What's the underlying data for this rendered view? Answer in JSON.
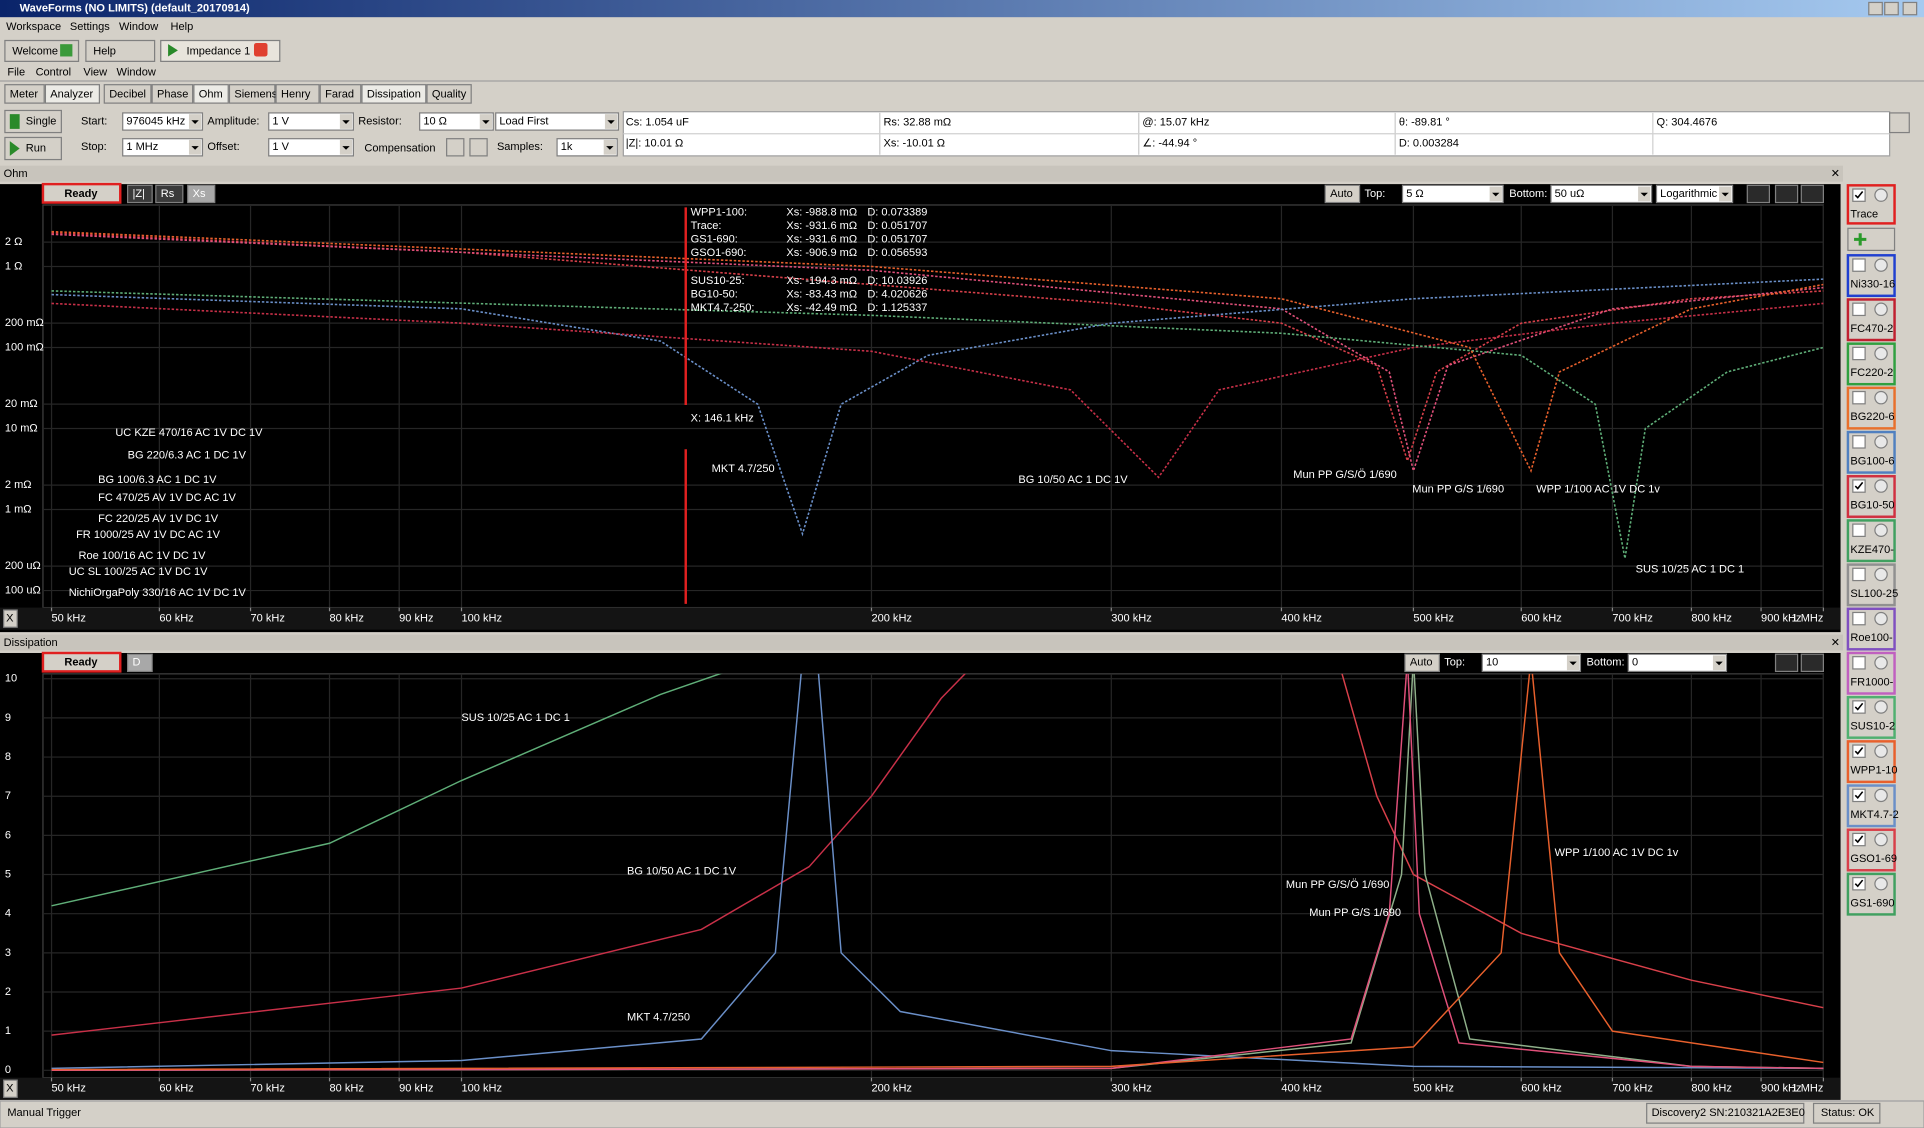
{
  "title_bar": {
    "title": "WaveForms (NO LIMITS) (default_20170914)"
  },
  "main_menu": [
    "Workspace",
    "Settings",
    "Window",
    "Help"
  ],
  "app_tabs": [
    "Welcome",
    "Help",
    "Impedance 1"
  ],
  "sub_menu": [
    "File",
    "Control",
    "View",
    "Window"
  ],
  "view_tabs": [
    "Meter",
    "Analyzer",
    "Decibel",
    "Phase",
    "Ohm",
    "Siemens",
    "Henry",
    "Farad",
    "Dissipation",
    "Quality"
  ],
  "controls": {
    "single": "Single",
    "run": "Run",
    "start_label": "Start:",
    "start": "976045 kHz",
    "stop_label": "Stop:",
    "stop": "1 MHz",
    "amplitude_label": "Amplitude:",
    "amplitude": "1 V",
    "offset_label": "Offset:",
    "offset": "1 V",
    "resistor_label": "Resistor:",
    "resistor": "10 Ω",
    "load": "Load First",
    "compensation": "Compensation",
    "samples_label": "Samples:",
    "samples": "1k"
  },
  "readouts": [
    [
      "Cs: 1.054 uF",
      "Rs: 32.88 mΩ",
      "@: 15.07 kHz",
      "θ: -89.81 °",
      "Q: 304.4676"
    ],
    [
      "|Z|: 10.01 Ω",
      "Xs: -10.01 Ω",
      "∠: -44.94 °",
      "D: 0.003284"
    ]
  ],
  "ohm_panel": {
    "panel_title": "Ohm",
    "status": "Ready",
    "buttons": [
      "|Z|",
      "Rs",
      "Xs"
    ],
    "auto": "Auto",
    "top_label": "Top:",
    "top": "5 Ω",
    "bottom_label": "Bottom:",
    "bottom": "50 uΩ",
    "scale": "Logarithmic",
    "x_button": "X",
    "chart": {
      "type": "line",
      "log_x": true,
      "log_y": true,
      "grid": true,
      "dashed": true,
      "xlim": [
        50000,
        1000000
      ],
      "xticks": [
        {
          "value": 50000,
          "label": "50 kHz"
        },
        {
          "value": 60000,
          "label": "60 kHz"
        },
        {
          "value": 70000,
          "label": "70 kHz"
        },
        {
          "value": 80000,
          "label": "80 kHz"
        },
        {
          "value": 90000,
          "label": "90 kHz"
        },
        {
          "value": 100000,
          "label": "100 kHz"
        },
        {
          "value": 200000,
          "label": "200 kHz"
        },
        {
          "value": 300000,
          "label": "300 kHz"
        },
        {
          "value": 400000,
          "label": "400 kHz"
        },
        {
          "value": 500000,
          "label": "500 kHz"
        },
        {
          "value": 600000,
          "label": "600 kHz"
        },
        {
          "value": 700000,
          "label": "700 kHz"
        },
        {
          "value": 800000,
          "label": "800 kHz"
        },
        {
          "value": 900000,
          "label": "900 kHz"
        },
        {
          "value": 1000000,
          "label": "1 MHz"
        }
      ],
      "ylim": [
        5e-05,
        5
      ],
      "yticks": [
        {
          "value": 2,
          "label": "2 Ω"
        },
        {
          "value": 1,
          "label": "1 Ω"
        },
        {
          "value": 0.2,
          "label": "200 mΩ"
        },
        {
          "value": 0.1,
          "label": "100 mΩ"
        },
        {
          "value": 0.02,
          "label": "20 mΩ"
        },
        {
          "value": 0.01,
          "label": "10 mΩ"
        },
        {
          "value": 0.002,
          "label": "2 mΩ"
        },
        {
          "value": 0.001,
          "label": "1 mΩ"
        },
        {
          "value": 0.0002,
          "label": "200 uΩ"
        },
        {
          "value": 0.0001,
          "label": "100 uΩ"
        }
      ],
      "series": [
        {
          "color": "#d8404a",
          "x": [
            50000,
            100000,
            200000,
            300000,
            400000,
            470000,
            495000,
            520000,
            600000,
            800000,
            1000000
          ],
          "values": [
            2.6,
            1.5,
            0.6,
            0.35,
            0.2,
            0.06,
            0.004,
            0.05,
            0.2,
            0.4,
            0.5
          ]
        },
        {
          "color": "#e0507a",
          "x": [
            50000,
            200000,
            400000,
            480000,
            500000,
            530000,
            700000,
            1000000
          ],
          "values": [
            2.5,
            0.9,
            0.3,
            0.05,
            0.003,
            0.06,
            0.3,
            0.55
          ]
        },
        {
          "color": "#6a8fc8",
          "x": [
            50000,
            100000,
            140000,
            165000,
            178000,
            190000,
            220000,
            300000,
            500000,
            1000000
          ],
          "values": [
            0.45,
            0.3,
            0.12,
            0.02,
            0.0005,
            0.02,
            0.08,
            0.2,
            0.4,
            0.7
          ]
        },
        {
          "color": "#c83048",
          "x": [
            50000,
            100000,
            200000,
            280000,
            325000,
            360000,
            500000,
            700000,
            1000000
          ],
          "values": [
            0.35,
            0.2,
            0.09,
            0.03,
            0.0025,
            0.03,
            0.1,
            0.2,
            0.35
          ]
        },
        {
          "color": "#5fae78",
          "x": [
            50000,
            200000,
            400000,
            600000,
            680000,
            715000,
            740000,
            850000,
            1000000
          ],
          "values": [
            0.5,
            0.25,
            0.15,
            0.08,
            0.02,
            0.00025,
            0.01,
            0.05,
            0.1
          ]
        },
        {
          "color": "#e8602c",
          "x": [
            50000,
            200000,
            400000,
            550000,
            610000,
            640000,
            800000,
            1000000
          ],
          "values": [
            2.7,
            1.0,
            0.4,
            0.1,
            0.003,
            0.05,
            0.3,
            0.6
          ]
        }
      ],
      "annotations": [
        "UC KZE 470/16 AC 1V DC 1V",
        "BG 220/6.3 AC 1 DC 1V",
        "BG 100/6.3 AC 1 DC 1V",
        "FC 470/25 AV 1V DC AC 1V",
        "FC 220/25 AV 1V DC 1V",
        "FR 1000/25 AV 1V DC AC 1V",
        "Roe 100/16 AC 1V DC 1V",
        "UC SL 100/25 AC 1V DC 1V",
        "NichiOrgaPoly 330/16 AC 1V  DC 1V",
        "MKT 4.7/250",
        "BG 10/50 AC 1 DC 1V",
        "Mun PP G/S/Ö 1/690",
        "Mun PP G/S 1/690",
        "WPP 1/100 AC 1V DC 1v",
        "SUS 10/25 AC 1 DC 1"
      ]
    },
    "cursor": {
      "x": 146100,
      "label": "X: 146.1 kHz",
      "readout": [
        [
          "WPP1-100:",
          "Xs: -988.8 mΩ",
          "D: 0.073389"
        ],
        [
          "Trace:",
          "Xs: -931.6 mΩ",
          "D: 0.051707"
        ],
        [
          "GS1-690:",
          "Xs: -931.6 mΩ",
          "D: 0.051707"
        ],
        [
          "GSO1-690:",
          "Xs: -906.9 mΩ",
          "D: 0.056593"
        ],
        [
          "SUS10-25:",
          "Xs: -194.3 mΩ",
          "D: 10.03926"
        ],
        [
          "BG10-50:",
          "Xs: -83.43 mΩ",
          "D: 4.020626"
        ],
        [
          "MKT4.7-250:",
          "Xs: -42.49 mΩ",
          "D: 1.125337"
        ]
      ]
    }
  },
  "dissipation_panel": {
    "panel_title": "Dissipation",
    "status": "Ready",
    "buttons": [
      "D"
    ],
    "auto": "Auto",
    "top_label": "Top:",
    "top": "10",
    "bottom_label": "Bottom:",
    "bottom": "0",
    "x_button": "X",
    "chart": {
      "type": "line",
      "log_x": true,
      "log_y": false,
      "grid": true,
      "dashed": false,
      "xlim": [
        50000,
        1000000
      ],
      "xticks": [
        {
          "value": 50000,
          "label": "50 kHz"
        },
        {
          "value": 60000,
          "label": "60 kHz"
        },
        {
          "value": 70000,
          "label": "70 kHz"
        },
        {
          "value": 80000,
          "label": "80 kHz"
        },
        {
          "value": 90000,
          "label": "90 kHz"
        },
        {
          "value": 100000,
          "label": "100 kHz"
        },
        {
          "value": 200000,
          "label": "200 kHz"
        },
        {
          "value": 300000,
          "label": "300 kHz"
        },
        {
          "value": 400000,
          "label": "400 kHz"
        },
        {
          "value": 500000,
          "label": "500 kHz"
        },
        {
          "value": 600000,
          "label": "600 kHz"
        },
        {
          "value": 700000,
          "label": "700 kHz"
        },
        {
          "value": 800000,
          "label": "800 kHz"
        },
        {
          "value": 900000,
          "label": "900 kHz"
        },
        {
          "value": 1000000,
          "label": "1 MHz"
        }
      ],
      "ylim": [
        0,
        10
      ],
      "yticks": [
        0,
        1,
        2,
        3,
        4,
        5,
        6,
        7,
        8,
        9,
        10
      ],
      "series": [
        {
          "color": "#5fae78",
          "x": [
            50000,
            80000,
            100000,
            140000,
            160000
          ],
          "values": [
            4.2,
            5.8,
            7.4,
            9.6,
            10.3
          ]
        },
        {
          "color": "#c83048",
          "x": [
            50000,
            100000,
            150000,
            180000,
            200000,
            225000,
            240000
          ],
          "values": [
            0.9,
            2.1,
            3.6,
            5.2,
            7,
            9.5,
            10.5
          ]
        },
        {
          "color": "#6a8fc8",
          "x": [
            50000,
            100000,
            150000,
            170000,
            178000,
            182000,
            190000,
            210000,
            300000,
            500000,
            1000000
          ],
          "values": [
            0.05,
            0.25,
            0.8,
            3,
            10.5,
            11,
            3,
            1.5,
            0.5,
            0.1,
            0.05
          ]
        },
        {
          "color": "#d8404a",
          "x": [
            440000,
            470000,
            500000,
            600000,
            800000,
            1000000
          ],
          "values": [
            10.5,
            7,
            5,
            3.5,
            2.3,
            1.6
          ]
        },
        {
          "color": "#8fb08a",
          "x": [
            50000,
            300000,
            450000,
            490000,
            500000,
            510000,
            550000,
            800000,
            1000000
          ],
          "values": [
            0,
            0.05,
            0.7,
            5,
            10.5,
            5,
            0.8,
            0.1,
            0.05
          ]
        },
        {
          "color": "#e0507a",
          "x": [
            50000,
            300000,
            450000,
            480000,
            495000,
            505000,
            540000,
            800000,
            1000000
          ],
          "values": [
            0,
            0.05,
            0.8,
            4,
            10.5,
            4,
            0.7,
            0.1,
            0.05
          ]
        },
        {
          "color": "#e8602c",
          "x": [
            50000,
            300000,
            500000,
            580000,
            610000,
            640000,
            700000,
            1000000
          ],
          "values": [
            0.02,
            0.1,
            0.6,
            3,
            10.5,
            3,
            1,
            0.2
          ]
        }
      ],
      "annotations": [
        "SUS 10/25 AC 1 DC 1",
        "BG 10/50 AC 1 DC 1V",
        "MKT 4.7/250",
        "Mun PP G/S/Ö 1/690",
        "Mun PP G/S 1/690",
        "WPP 1/100 AC 1V DC 1v"
      ]
    }
  },
  "trace_list": [
    {
      "name": "Trace",
      "color": "#e02020",
      "checked": true
    },
    {
      "name": "Ni330-16",
      "color": "#2040d0",
      "checked": false
    },
    {
      "name": "FC470-2",
      "color": "#c02030",
      "checked": false
    },
    {
      "name": "FC220-2",
      "color": "#30a040",
      "checked": false
    },
    {
      "name": "BG220-6",
      "color": "#e8702c",
      "checked": false
    },
    {
      "name": "BG100-6",
      "color": "#5080c0",
      "checked": false
    },
    {
      "name": "BG10-50",
      "color": "#d03040",
      "checked": true
    },
    {
      "name": "KZE470-",
      "color": "#40a060",
      "checked": false
    },
    {
      "name": "SL100-25",
      "color": "#909090",
      "checked": false
    },
    {
      "name": "Roe100-",
      "color": "#8050c0",
      "checked": false
    },
    {
      "name": "FR1000-",
      "color": "#c060c0",
      "checked": false
    },
    {
      "name": "SUS10-2",
      "color": "#50b070",
      "checked": true
    },
    {
      "name": "WPP1-10",
      "color": "#e8602c",
      "checked": true
    },
    {
      "name": "MKT4.7-2",
      "color": "#6a8fc8",
      "checked": true
    },
    {
      "name": "GSO1-69",
      "color": "#d8404a",
      "checked": true
    },
    {
      "name": "GS1-690",
      "color": "#40a060",
      "checked": true
    }
  ],
  "status_bar": {
    "trigger": "Manual Trigger",
    "device": "Discovery2 SN:210321A2E3E0",
    "status": "Status: OK"
  }
}
